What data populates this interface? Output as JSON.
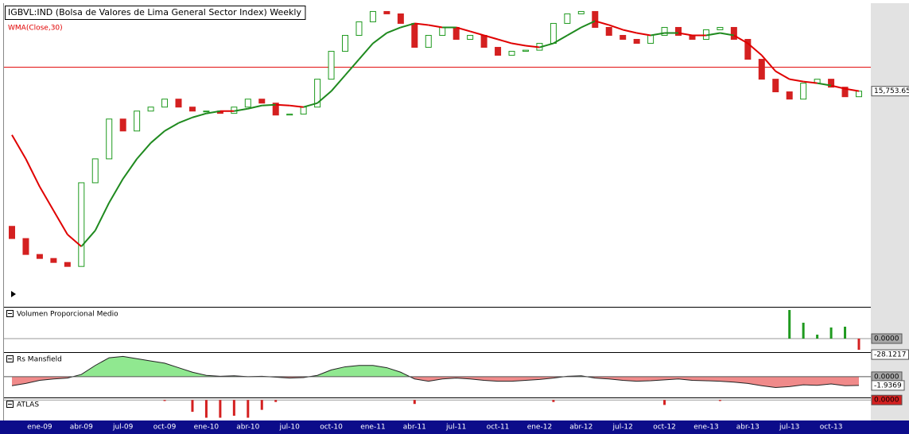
{
  "chart_data": [
    {
      "type": "candlestick",
      "title": "IGBVL:IND (Bolsa de Valores de Lima General Sector Index) Weekly",
      "categories": [
        null,
        null,
        "ene-09",
        null,
        null,
        "abr-09",
        null,
        null,
        "jul-09",
        null,
        null,
        "oct-09",
        null,
        null,
        "ene-10",
        null,
        null,
        "abr-10",
        null,
        null,
        "jul-10",
        null,
        null,
        "oct-10",
        null,
        null,
        "ene-11",
        null,
        null,
        "abr-11",
        null,
        null,
        "jul-11",
        null,
        null,
        "oct-11",
        null,
        null,
        "ene-12",
        null,
        null,
        "abr-12",
        null,
        null,
        "jul-12",
        null,
        null,
        "oct-12",
        null,
        null,
        "ene-13",
        null,
        null,
        "abr-13",
        null,
        null,
        "jul-13",
        null,
        null,
        "oct-13",
        null,
        null
      ],
      "series": [
        {
          "name": "IGBVL:IND",
          "up_color": "#1f9a1f",
          "down_color": "#d42020",
          "open": [
            8200,
            7730,
            7158,
            7021,
            6887,
            6756,
            10120,
            11358,
            13768,
            12996,
            14308,
            14586,
            15158,
            14586,
            14308,
            14308,
            14150,
            14586,
            15158,
            14869,
            14036,
            14100,
            14586,
            16689,
            19096,
            20624,
            22018,
            23146,
            22881,
            21850,
            19466,
            20624,
            21432,
            20230,
            20624,
            19466,
            18732,
            19096,
            19200,
            19844,
            21850,
            22881,
            23146,
            21432,
            20624,
            20230,
            19844,
            20624,
            21432,
            20624,
            20230,
            21186,
            21432,
            20230,
            18374,
            16689,
            15700,
            15158,
            16371,
            16689,
            16059,
            15334
          ],
          "close": [
            7730,
            7158,
            7021,
            6887,
            6756,
            10120,
            11358,
            13768,
            12996,
            14308,
            14586,
            15158,
            14586,
            14308,
            14308,
            14150,
            14586,
            15158,
            14869,
            14036,
            14100,
            14586,
            16689,
            19096,
            20624,
            22018,
            23146,
            22881,
            21850,
            19466,
            20624,
            21432,
            20230,
            20624,
            19466,
            18732,
            19096,
            19200,
            19844,
            21850,
            22881,
            23146,
            21432,
            20624,
            20230,
            19844,
            20624,
            21432,
            20624,
            20230,
            21186,
            21432,
            20230,
            18374,
            16689,
            15700,
            15158,
            16371,
            16689,
            16059,
            15334,
            15753.65
          ],
          "value_labels": [
            null,
            null,
            null,
            null,
            null,
            null,
            null,
            null,
            null,
            null,
            null,
            null,
            null,
            null,
            null,
            null,
            null,
            null,
            null,
            null,
            null,
            null,
            null,
            null,
            null,
            null,
            null,
            null,
            null,
            null,
            null,
            null,
            null,
            null,
            null,
            null,
            null,
            null,
            null,
            null,
            null,
            null,
            null,
            null,
            null,
            null,
            null,
            null,
            null,
            null,
            null,
            null,
            null,
            null,
            null,
            null,
            null,
            null,
            null,
            null,
            null,
            "15,753.65"
          ]
        }
      ],
      "wma": {
        "name": "WMA(Close,30)",
        "up_color": "#1f8a1f",
        "down_color": "#e00000",
        "values": [
          12749,
          11358,
          9928,
          8846,
          7882,
          7439,
          8034,
          9192,
          10317,
          11358,
          12267,
          12996,
          13507,
          13874,
          14145,
          14308,
          14308,
          14474,
          14698,
          14756,
          14698,
          14586,
          14869,
          15753,
          17014,
          18374,
          19844,
          20863,
          21432,
          21850,
          21681,
          21432,
          21432,
          21025,
          20624,
          20230,
          19844,
          19616,
          19466,
          19844,
          20624,
          21432,
          22102,
          21681,
          21186,
          20863,
          20624,
          20863,
          20863,
          20624,
          20624,
          20863,
          20624,
          19844,
          18732,
          17344,
          16689,
          16498,
          16371,
          16183,
          15936,
          15753
        ]
      },
      "reference_line": {
        "value": 17680,
        "color": "#e00000"
      },
      "ylim": [
        5580,
        24000
      ],
      "log_scale": true
    },
    {
      "type": "bar",
      "title": "Volumen Proporcional Medio",
      "pos_color": "#1f9a1f",
      "neg_color": "#d42020",
      "values": [
        null,
        null,
        null,
        null,
        null,
        null,
        null,
        null,
        null,
        null,
        null,
        null,
        null,
        null,
        null,
        null,
        null,
        null,
        null,
        null,
        null,
        null,
        null,
        null,
        null,
        null,
        null,
        null,
        null,
        null,
        null,
        null,
        null,
        null,
        null,
        null,
        null,
        null,
        null,
        null,
        null,
        null,
        null,
        null,
        null,
        null,
        null,
        null,
        null,
        null,
        null,
        null,
        null,
        null,
        null,
        null,
        72,
        40,
        10,
        28,
        30,
        -28.1217
      ],
      "ylim": [
        -34,
        76
      ],
      "yticks": [
        {
          "value": 0,
          "label": "0.0000"
        }
      ]
    },
    {
      "type": "area",
      "title": "Rs Mansfield",
      "pos_color": "#90e890",
      "neg_color": "#f08a8a",
      "values": [
        -2,
        -1.5,
        -0.8,
        -0.5,
        -0.3,
        0.5,
        2.5,
        4.2,
        4.5,
        4.0,
        3.5,
        3.0,
        2.0,
        1.0,
        0.3,
        0.1,
        0.2,
        0.0,
        0.1,
        -0.1,
        -0.3,
        -0.2,
        0.3,
        1.5,
        2.2,
        2.5,
        2.5,
        2.0,
        1.0,
        -0.5,
        -1.0,
        -0.5,
        -0.3,
        -0.5,
        -0.8,
        -1.0,
        -1.0,
        -0.8,
        -0.6,
        -0.3,
        0.1,
        0.2,
        -0.3,
        -0.5,
        -0.8,
        -1.0,
        -0.9,
        -0.7,
        -0.5,
        -0.8,
        -0.9,
        -1.0,
        -1.2,
        -1.5,
        -2.0,
        -2.4,
        -2.2,
        -1.8,
        -1.9,
        -1.6,
        -2.0,
        -1.9369
      ],
      "ylim": [
        -4.6,
        5.1
      ],
      "yticks": [
        {
          "value": 0,
          "label": "0.0000"
        }
      ]
    },
    {
      "type": "bar",
      "title": "ATLAS",
      "pos_color": "#d42020",
      "neg_color": "#d42020",
      "values": [
        null,
        null,
        null,
        null,
        null,
        null,
        null,
        null,
        null,
        null,
        null,
        -0.05,
        null,
        -0.6,
        -0.9,
        -0.9,
        -0.8,
        -0.9,
        -0.5,
        -0.1,
        null,
        null,
        null,
        null,
        null,
        null,
        null,
        null,
        null,
        -0.2,
        null,
        null,
        null,
        null,
        null,
        null,
        null,
        null,
        null,
        -0.1,
        null,
        null,
        null,
        null,
        null,
        null,
        null,
        -0.25,
        null,
        null,
        null,
        -0.05,
        null,
        null,
        null,
        null,
        null,
        null,
        null,
        null,
        null,
        null
      ],
      "ylim": [
        -1,
        0.05
      ],
      "yticks": [
        {
          "value": 0,
          "label": "0.0000"
        }
      ]
    }
  ]
}
